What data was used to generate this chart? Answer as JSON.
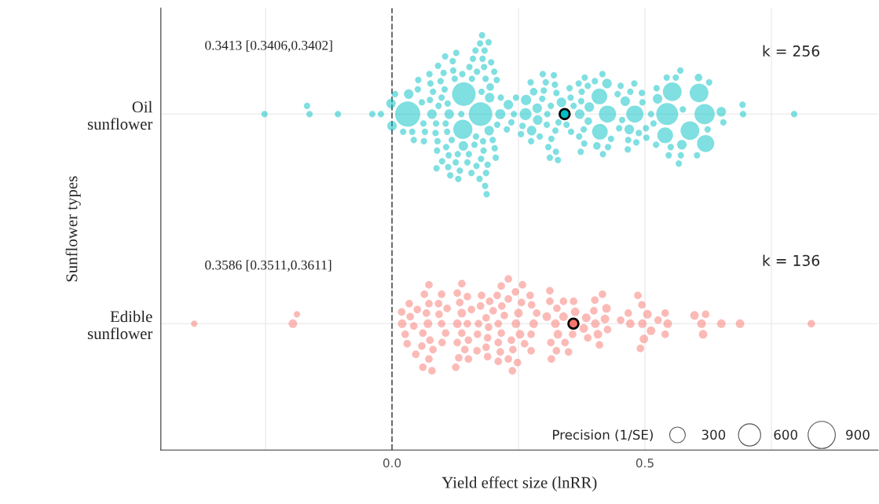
{
  "chart_data": {
    "type": "bubble",
    "orientation": "horizontal",
    "categories": [
      "Oil\nsunflower",
      "Edible\nsunflower"
    ],
    "xlabel": "Yield effect size (lnRR)",
    "ylabel": "Sunflower types",
    "legend_title": "Precision (1/SE)",
    "size_legend": [
      300,
      600,
      900
    ],
    "grid": true,
    "marker": "circle",
    "annotations": [
      "0.3413 [0.3406,0.3402]",
      "k = 256",
      "0.3586 [0.3511,0.3611]",
      "k = 136"
    ],
    "xlim": [
      -0.457,
      0.961
    ],
    "xticks": [
      {
        "value": -0.25,
        "label": null
      },
      {
        "value": 0,
        "label": "0.0"
      },
      {
        "value": 0.25,
        "label": null
      },
      0.5,
      {
        "value": 0.75,
        "label": null
      }
    ],
    "ref_lines": [
      {
        "axis": "x",
        "value": 0,
        "line_style": "dashed",
        "color": "#666666"
      }
    ],
    "series": [
      {
        "color": "#00bfc4",
        "values": [
          -0.252,
          -0.163,
          -0.168,
          -0.107,
          -0.039,
          -0.022,
          -0.002,
          0.006,
          0.0,
          0.031,
          0.033,
          0.04,
          0.022,
          0.043,
          0.059,
          0.062,
          0.051,
          0.065,
          0.079,
          0.092,
          0.106,
          0.118,
          0.087,
          0.098,
          0.11,
          0.124,
          0.13,
          0.14,
          0.175,
          0.158,
          0.166,
          0.177,
          0.152,
          0.199,
          0.18,
          0.185,
          0.194,
          0.207,
          0.203,
          0.181,
          0.168,
          0.163,
          0.137,
          0.121,
          0.109,
          0.104,
          0.086,
          0.075,
          0.09,
          0.096,
          0.113,
          0.126,
          0.139,
          0.153,
          0.176,
          0.182,
          0.189,
          0.193,
          0.202,
          0.179,
          0.167,
          0.12,
          0.107,
          0.081,
          0.076,
          0.102,
          0.134,
          0.16,
          0.186,
          0.208,
          0.183,
          0.173,
          0.192,
          0.205,
          0.127,
          0.112,
          0.089,
          0.063,
          0.052,
          0.099,
          0.141,
          0.157,
          0.184,
          0.191,
          0.174,
          0.142,
          0.111,
          0.105,
          0.091,
          0.074,
          0.088,
          0.115,
          0.131,
          0.149,
          0.165,
          0.178,
          0.196,
          0.187,
          0.214,
          0.264,
          0.275,
          0.307,
          0.329,
          0.287,
          0.345,
          0.371,
          0.426,
          0.41,
          0.411,
          0.48,
          0.471,
          0.495,
          0.523,
          0.573,
          0.607,
          0.544,
          0.554,
          0.62,
          0.589,
          0.618,
          0.54,
          0.655,
          0.694,
          0.693,
          0.651,
          0.795,
          0.23,
          0.265,
          0.288,
          0.274,
          0.335,
          0.433,
          0.525,
          0.551,
          0.575,
          0.488,
          0.455,
          0.517,
          0.427,
          0.374,
          0.353,
          0.512,
          0.467,
          0.449,
          0.461,
          0.479,
          0.405,
          0.388,
          0.379,
          0.359,
          0.314,
          0.292,
          0.306,
          0.323,
          0.258,
          0.241,
          0.325,
          0.315,
          0.297,
          0.28,
          0.3,
          0.322,
          0.309,
          0.276,
          0.236,
          0.255,
          0.304,
          0.32,
          0.324,
          0.298,
          0.312,
          0.245,
          0.227,
          0.215,
          0.375,
          0.37,
          0.38,
          0.416,
          0.354,
          0.369,
          0.381,
          0.39,
          0.425,
          0.446,
          0.466,
          0.494,
          0.502,
          0.522,
          0.561,
          0.571,
          0.606,
          0.624,
          0.603,
          0.627,
          0.57,
          0.543,
          0.567,
          0.547,
          0.469,
          0.452,
          0.483,
          0.503,
          0.417,
          0.387,
          0.401,
          0.373,
          0.351,
          0.328
        ],
        "x": [
          "Oil\nsunflower",
          "Oil\nsunflower",
          "Oil\nsunflower",
          "Oil\nsunflower",
          "Oil\nsunflower",
          "Oil\nsunflower",
          "Oil\nsunflower",
          "Oil\nsunflower",
          "Oil\nsunflower",
          "Oil\nsunflower",
          "Oil\nsunflower",
          "Oil\nsunflower",
          "Oil\nsunflower",
          "Oil\nsunflower",
          "Oil\nsunflower",
          "Oil\nsunflower",
          "Oil\nsunflower",
          "Oil\nsunflower",
          "Oil\nsunflower",
          "Oil\nsunflower",
          "Oil\nsunflower",
          "Oil\nsunflower",
          "Oil\nsunflower",
          "Oil\nsunflower",
          "Oil\nsunflower",
          "Oil\nsunflower",
          "Oil\nsunflower",
          "Oil\nsunflower",
          "Oil\nsunflower",
          "Oil\nsunflower",
          "Oil\nsunflower",
          "Oil\nsunflower",
          "Oil\nsunflower",
          "Oil\nsunflower",
          "Oil\nsunflower",
          "Oil\nsunflower",
          "Oil\nsunflower",
          "Oil\nsunflower",
          "Oil\nsunflower",
          "Oil\nsunflower",
          "Oil\nsunflower",
          "Oil\nsunflower",
          "Oil\nsunflower",
          "Oil\nsunflower",
          "Oil\nsunflower",
          "Oil\nsunflower",
          "Oil\nsunflower",
          "Oil\nsunflower",
          "Oil\nsunflower",
          "Oil\nsunflower",
          "Oil\nsunflower",
          "Oil\nsunflower",
          "Oil\nsunflower",
          "Oil\nsunflower",
          "Oil\nsunflower",
          "Oil\nsunflower",
          "Oil\nsunflower",
          "Oil\nsunflower",
          "Oil\nsunflower",
          "Oil\nsunflower",
          "Oil\nsunflower",
          "Oil\nsunflower",
          "Oil\nsunflower",
          "Oil\nsunflower",
          "Oil\nsunflower",
          "Oil\nsunflower",
          "Oil\nsunflower",
          "Oil\nsunflower",
          "Oil\nsunflower",
          "Oil\nsunflower",
          "Oil\nsunflower",
          "Oil\nsunflower",
          "Oil\nsunflower",
          "Oil\nsunflower",
          "Oil\nsunflower",
          "Oil\nsunflower",
          "Oil\nsunflower",
          "Oil\nsunflower",
          "Oil\nsunflower",
          "Oil\nsunflower",
          "Oil\nsunflower",
          "Oil\nsunflower",
          "Oil\nsunflower",
          "Oil\nsunflower",
          "Oil\nsunflower",
          "Oil\nsunflower",
          "Oil\nsunflower",
          "Oil\nsunflower",
          "Oil\nsunflower",
          "Oil\nsunflower",
          "Oil\nsunflower",
          "Oil\nsunflower",
          "Oil\nsunflower",
          "Oil\nsunflower",
          "Oil\nsunflower",
          "Oil\nsunflower",
          "Oil\nsunflower",
          "Oil\nsunflower",
          "Oil\nsunflower",
          "Oil\nsunflower",
          "Oil\nsunflower",
          "Oil\nsunflower",
          "Oil\nsunflower",
          "Oil\nsunflower",
          "Oil\nsunflower",
          "Oil\nsunflower",
          "Oil\nsunflower",
          "Oil\nsunflower",
          "Oil\nsunflower",
          "Oil\nsunflower",
          "Oil\nsunflower",
          "Oil\nsunflower",
          "Oil\nsunflower",
          "Oil\nsunflower",
          "Oil\nsunflower",
          "Oil\nsunflower",
          "Oil\nsunflower",
          "Oil\nsunflower",
          "Oil\nsunflower",
          "Oil\nsunflower",
          "Oil\nsunflower",
          "Oil\nsunflower",
          "Oil\nsunflower",
          "Oil\nsunflower",
          "Oil\nsunflower",
          "Oil\nsunflower",
          "Oil\nsunflower",
          "Oil\nsunflower",
          "Oil\nsunflower",
          "Oil\nsunflower",
          "Oil\nsunflower",
          "Oil\nsunflower",
          "Oil\nsunflower",
          "Oil\nsunflower",
          "Oil\nsunflower",
          "Oil\nsunflower",
          "Oil\nsunflower",
          "Oil\nsunflower",
          "Oil\nsunflower",
          "Oil\nsunflower",
          "Oil\nsunflower",
          "Oil\nsunflower",
          "Oil\nsunflower",
          "Oil\nsunflower",
          "Oil\nsunflower",
          "Oil\nsunflower",
          "Oil\nsunflower",
          "Oil\nsunflower",
          "Oil\nsunflower",
          "Oil\nsunflower",
          "Oil\nsunflower",
          "Oil\nsunflower",
          "Oil\nsunflower",
          "Oil\nsunflower",
          "Oil\nsunflower",
          "Oil\nsunflower",
          "Oil\nsunflower",
          "Oil\nsunflower",
          "Oil\nsunflower",
          "Oil\nsunflower",
          "Oil\nsunflower",
          "Oil\nsunflower",
          "Oil\nsunflower",
          "Oil\nsunflower",
          "Oil\nsunflower",
          "Oil\nsunflower",
          "Oil\nsunflower",
          "Oil\nsunflower",
          "Oil\nsunflower",
          "Oil\nsunflower",
          "Oil\nsunflower",
          "Oil\nsunflower",
          "Oil\nsunflower",
          "Oil\nsunflower",
          "Oil\nsunflower",
          "Oil\nsunflower",
          "Oil\nsunflower",
          "Oil\nsunflower",
          "Oil\nsunflower",
          "Oil\nsunflower",
          "Oil\nsunflower",
          "Oil\nsunflower",
          "Oil\nsunflower",
          "Oil\nsunflower",
          "Oil\nsunflower",
          "Oil\nsunflower",
          "Oil\nsunflower",
          "Oil\nsunflower",
          "Oil\nsunflower",
          "Oil\nsunflower",
          "Oil\nsunflower",
          "Oil\nsunflower",
          "Oil\nsunflower",
          "Oil\nsunflower",
          "Oil\nsunflower",
          "Oil\nsunflower",
          "Oil\nsunflower",
          "Oil\nsunflower",
          "Oil\nsunflower",
          "Oil\nsunflower",
          "Oil\nsunflower",
          "Oil\nsunflower",
          "Oil\nsunflower",
          "Oil\nsunflower",
          "Oil\nsunflower",
          "Oil\nsunflower",
          "Oil\nsunflower",
          "Oil\nsunflower"
        ],
        "sizes": [
          50,
          50,
          50,
          50,
          50,
          50,
          110,
          50,
          110,
          770,
          110,
          50,
          50,
          50,
          50,
          50,
          50,
          50,
          110,
          50,
          50,
          50,
          50,
          50,
          50,
          50,
          50,
          450,
          680,
          50,
          50,
          50,
          50,
          50,
          50,
          50,
          70,
          50,
          50,
          50,
          50,
          50,
          50,
          50,
          50,
          50,
          50,
          50,
          50,
          50,
          110,
          50,
          50,
          50,
          50,
          50,
          50,
          110,
          50,
          50,
          50,
          50,
          50,
          50,
          50,
          50,
          50,
          50,
          50,
          50,
          50,
          50,
          110,
          50,
          50,
          50,
          50,
          50,
          50,
          50,
          110,
          50,
          50,
          50,
          50,
          680,
          50,
          50,
          50,
          50,
          50,
          50,
          50,
          50,
          50,
          50,
          50,
          50,
          125,
          170,
          50,
          50,
          50,
          110,
          50,
          110,
          360,
          300,
          300,
          360,
          50,
          50,
          50,
          110,
          430,
          590,
          430,
          360,
          430,
          500,
          300,
          50,
          50,
          50,
          110,
          50,
          110,
          130,
          110,
          50,
          110,
          50,
          110,
          50,
          50,
          50,
          50,
          50,
          50,
          50,
          50,
          50,
          50,
          50,
          110,
          50,
          70,
          70,
          50,
          50,
          50,
          50,
          50,
          50,
          50,
          50,
          50,
          50,
          50,
          70,
          50,
          50,
          50,
          110,
          50,
          50,
          50,
          50,
          50,
          50,
          50,
          50,
          50,
          50,
          50,
          50,
          50,
          50,
          50,
          50,
          50,
          110,
          110,
          50,
          50,
          50,
          50,
          50,
          50,
          50,
          70,
          50,
          50,
          50,
          50,
          50,
          50,
          50,
          110,
          50,
          50,
          50,
          50,
          50,
          50,
          50,
          50,
          50
        ]
      },
      {
        "color": "#f8766d",
        "values": [
          -0.391,
          -0.188,
          -0.196,
          0.02,
          0.036,
          0.068,
          0.026,
          0.019,
          0.043,
          0.061,
          0.075,
          0.071,
          0.05,
          0.034,
          0.073,
          0.081,
          0.064,
          0.098,
          0.093,
          0.106,
          0.092,
          0.059,
          0.073,
          0.03,
          0.047,
          0.073,
          0.099,
          0.098,
          0.061,
          0.079,
          0.109,
          0.138,
          0.149,
          0.129,
          0.151,
          0.134,
          0.144,
          0.129,
          0.171,
          0.157,
          0.138,
          0.149,
          0.129,
          0.151,
          0.132,
          0.138,
          0.126,
          0.169,
          0.186,
          0.191,
          0.175,
          0.189,
          0.2,
          0.21,
          0.216,
          0.193,
          0.186,
          0.177,
          0.21,
          0.222,
          0.208,
          0.189,
          0.168,
          0.214,
          0.217,
          0.21,
          0.216,
          0.256,
          0.236,
          0.245,
          0.286,
          0.326,
          0.275,
          0.314,
          0.362,
          0.41,
          0.399,
          0.342,
          0.323,
          0.25,
          0.23,
          0.276,
          0.426,
          0.402,
          0.357,
          0.312,
          0.239,
          0.262,
          0.339,
          0.384,
          0.421,
          0.407,
          0.325,
          0.359,
          0.28,
          0.253,
          0.23,
          0.273,
          0.244,
          0.312,
          0.339,
          0.315,
          0.387,
          0.424,
          0.401,
          0.349,
          0.379,
          0.416,
          0.275,
          0.306,
          0.328,
          0.248,
          0.23,
          0.258,
          0.238,
          0.452,
          0.471,
          0.467,
          0.494,
          0.495,
          0.505,
          0.491,
          0.54,
          0.526,
          0.545,
          0.512,
          0.498,
          0.486,
          0.54,
          0.612,
          0.62,
          0.598,
          0.615,
          0.651,
          0.688,
          0.829
        ],
        "x": [
          "Edible\nsunflower",
          "Edible\nsunflower",
          "Edible\nsunflower",
          "Edible\nsunflower",
          "Edible\nsunflower",
          "Edible\nsunflower",
          "Edible\nsunflower",
          "Edible\nsunflower",
          "Edible\nsunflower",
          "Edible\nsunflower",
          "Edible\nsunflower",
          "Edible\nsunflower",
          "Edible\nsunflower",
          "Edible\nsunflower",
          "Edible\nsunflower",
          "Edible\nsunflower",
          "Edible\nsunflower",
          "Edible\nsunflower",
          "Edible\nsunflower",
          "Edible\nsunflower",
          "Edible\nsunflower",
          "Edible\nsunflower",
          "Edible\nsunflower",
          "Edible\nsunflower",
          "Edible\nsunflower",
          "Edible\nsunflower",
          "Edible\nsunflower",
          "Edible\nsunflower",
          "Edible\nsunflower",
          "Edible\nsunflower",
          "Edible\nsunflower",
          "Edible\nsunflower",
          "Edible\nsunflower",
          "Edible\nsunflower",
          "Edible\nsunflower",
          "Edible\nsunflower",
          "Edible\nsunflower",
          "Edible\nsunflower",
          "Edible\nsunflower",
          "Edible\nsunflower",
          "Edible\nsunflower",
          "Edible\nsunflower",
          "Edible\nsunflower",
          "Edible\nsunflower",
          "Edible\nsunflower",
          "Edible\nsunflower",
          "Edible\nsunflower",
          "Edible\nsunflower",
          "Edible\nsunflower",
          "Edible\nsunflower",
          "Edible\nsunflower",
          "Edible\nsunflower",
          "Edible\nsunflower",
          "Edible\nsunflower",
          "Edible\nsunflower",
          "Edible\nsunflower",
          "Edible\nsunflower",
          "Edible\nsunflower",
          "Edible\nsunflower",
          "Edible\nsunflower",
          "Edible\nsunflower",
          "Edible\nsunflower",
          "Edible\nsunflower",
          "Edible\nsunflower",
          "Edible\nsunflower",
          "Edible\nsunflower",
          "Edible\nsunflower",
          "Edible\nsunflower",
          "Edible\nsunflower",
          "Edible\nsunflower",
          "Edible\nsunflower",
          "Edible\nsunflower",
          "Edible\nsunflower",
          "Edible\nsunflower",
          "Edible\nsunflower",
          "Edible\nsunflower",
          "Edible\nsunflower",
          "Edible\nsunflower",
          "Edible\nsunflower",
          "Edible\nsunflower",
          "Edible\nsunflower",
          "Edible\nsunflower",
          "Edible\nsunflower",
          "Edible\nsunflower",
          "Edible\nsunflower",
          "Edible\nsunflower",
          "Edible\nsunflower",
          "Edible\nsunflower",
          "Edible\nsunflower",
          "Edible\nsunflower",
          "Edible\nsunflower",
          "Edible\nsunflower",
          "Edible\nsunflower",
          "Edible\nsunflower",
          "Edible\nsunflower",
          "Edible\nsunflower",
          "Edible\nsunflower",
          "Edible\nsunflower",
          "Edible\nsunflower",
          "Edible\nsunflower",
          "Edible\nsunflower",
          "Edible\nsunflower",
          "Edible\nsunflower",
          "Edible\nsunflower",
          "Edible\nsunflower",
          "Edible\nsunflower",
          "Edible\nsunflower",
          "Edible\nsunflower",
          "Edible\nsunflower",
          "Edible\nsunflower",
          "Edible\nsunflower",
          "Edible\nsunflower",
          "Edible\nsunflower",
          "Edible\nsunflower",
          "Edible\nsunflower",
          "Edible\nsunflower",
          "Edible\nsunflower",
          "Edible\nsunflower",
          "Edible\nsunflower",
          "Edible\nsunflower",
          "Edible\nsunflower",
          "Edible\nsunflower",
          "Edible\nsunflower",
          "Edible\nsunflower",
          "Edible\nsunflower",
          "Edible\nsunflower",
          "Edible\nsunflower",
          "Edible\nsunflower",
          "Edible\nsunflower",
          "Edible\nsunflower",
          "Edible\nsunflower",
          "Edible\nsunflower",
          "Edible\nsunflower",
          "Edible\nsunflower",
          "Edible\nsunflower",
          "Edible\nsunflower"
        ],
        "sizes": [
          50,
          50,
          90,
          90,
          70,
          70,
          70,
          70,
          70,
          70,
          70,
          90,
          70,
          70,
          70,
          70,
          70,
          70,
          70,
          70,
          70,
          70,
          70,
          70,
          70,
          70,
          70,
          70,
          70,
          70,
          70,
          70,
          70,
          70,
          70,
          70,
          70,
          90,
          70,
          70,
          90,
          70,
          70,
          70,
          70,
          70,
          70,
          70,
          70,
          70,
          70,
          70,
          70,
          70,
          70,
          70,
          70,
          70,
          70,
          70,
          70,
          70,
          70,
          70,
          70,
          70,
          70,
          70,
          70,
          90,
          70,
          70,
          70,
          70,
          90,
          70,
          70,
          70,
          90,
          90,
          70,
          70,
          70,
          90,
          70,
          70,
          70,
          70,
          70,
          90,
          90,
          90,
          70,
          70,
          90,
          90,
          70,
          70,
          70,
          70,
          90,
          70,
          70,
          90,
          70,
          70,
          90,
          70,
          70,
          90,
          90,
          70,
          70,
          70,
          70,
          70,
          90,
          70,
          70,
          90,
          90,
          70,
          70,
          70,
          90,
          90,
          90,
          70,
          70,
          90,
          70,
          90,
          90,
          90,
          90,
          70
        ]
      },
      {
        "type": "scatter",
        "color": "#00bfc4",
        "values": [
          0.3413
        ],
        "x": [
          "Oil\nsunflower"
        ]
      },
      {
        "type": "scatter",
        "color": "#f8766d",
        "values": [
          0.3586
        ],
        "x": [
          "Edible\nsunflower"
        ]
      }
    ]
  }
}
